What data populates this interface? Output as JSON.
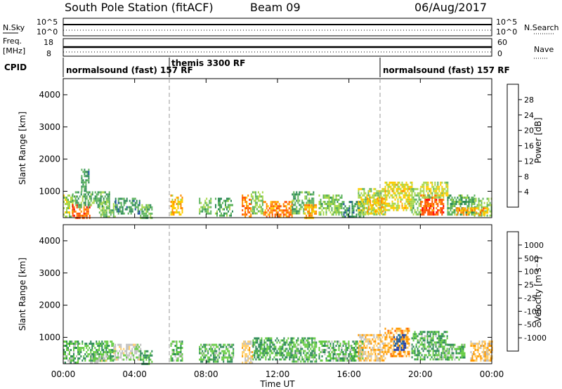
{
  "header": {
    "station": "South Pole Station (fitACF)",
    "beam": "Beam 09",
    "date": "06/Aug/2017"
  },
  "noise_panel": {
    "left_label": "N.Sky",
    "right_label": "N.Search",
    "left_ticks": [
      "10^5",
      "10^0"
    ],
    "right_ticks": [
      "10^5",
      "10^0"
    ]
  },
  "freq_panel": {
    "left_label_1": "Freq.",
    "left_label_2": "[MHz]",
    "right_label": "Nave",
    "left_ticks": [
      "18",
      "8"
    ],
    "right_ticks": [
      "60",
      "0"
    ]
  },
  "cpid_panel": {
    "label": "CPID",
    "modes": [
      {
        "text": "normalsound (fast) 157 RF",
        "start_hour": 0
      },
      {
        "text": "themis 3300 RF",
        "start_hour": 6
      },
      {
        "text": "normalsound (fast) 157 RF",
        "start_hour": 18
      }
    ]
  },
  "xaxis": {
    "label": "Time UT",
    "ticks": [
      "00:00",
      "04:00",
      "08:00",
      "12:00",
      "16:00",
      "20:00",
      "00:00"
    ]
  },
  "colors": {
    "power_scale": [
      "#0000ff",
      "#1f4fa0",
      "#2e8b57",
      "#5fb55f",
      "#a8d84c",
      "#ffcc00",
      "#ff8c00",
      "#ff5000",
      "#ff0000"
    ],
    "velocity_scale": [
      "#ff0000",
      "#ff5500",
      "#ff9900",
      "#ffcc66",
      "#c0c0c0",
      "#66cc44",
      "#2e8b57",
      "#2060a0",
      "#1f3fb0"
    ]
  },
  "chart_data": [
    {
      "type": "heatmap",
      "name": "power",
      "ylabel": "Slant Range [km]",
      "yticks": [
        1000,
        2000,
        3000,
        4000
      ],
      "ylim": [
        180,
        4500
      ],
      "xlim_hours": [
        0,
        24
      ],
      "colorbar": {
        "label": "Power [dB]",
        "ticks": [
          "28",
          "24",
          "20",
          "16",
          "12",
          "8",
          "4"
        ],
        "range": [
          0,
          32
        ]
      },
      "blocks": [
        {
          "t0": 0.0,
          "t1": 0.5,
          "r0": 200,
          "r1": 900,
          "v": 16
        },
        {
          "t0": 0.5,
          "t1": 1.6,
          "r0": 200,
          "r1": 600,
          "v": 26
        },
        {
          "t0": 0.5,
          "t1": 2.6,
          "r0": 500,
          "r1": 1000,
          "v": 12
        },
        {
          "t0": 1.0,
          "t1": 1.4,
          "r0": 1000,
          "r1": 1700,
          "v": 10
        },
        {
          "t0": 2.0,
          "t1": 2.9,
          "r0": 200,
          "r1": 700,
          "v": 14
        },
        {
          "t0": 2.9,
          "t1": 4.3,
          "r0": 300,
          "r1": 800,
          "v": 10
        },
        {
          "t0": 4.3,
          "t1": 5.0,
          "r0": 200,
          "r1": 600,
          "v": 12
        },
        {
          "t0": 6.0,
          "t1": 6.7,
          "r0": 300,
          "r1": 900,
          "v": 20
        },
        {
          "t0": 7.6,
          "t1": 8.3,
          "r0": 300,
          "r1": 800,
          "v": 14
        },
        {
          "t0": 8.5,
          "t1": 9.5,
          "r0": 250,
          "r1": 800,
          "v": 12
        },
        {
          "t0": 10.0,
          "t1": 10.5,
          "r0": 200,
          "r1": 900,
          "v": 24
        },
        {
          "t0": 10.5,
          "t1": 11.2,
          "r0": 300,
          "r1": 1000,
          "v": 14
        },
        {
          "t0": 11.2,
          "t1": 12.8,
          "r0": 200,
          "r1": 700,
          "v": 24
        },
        {
          "t0": 12.8,
          "t1": 14.0,
          "r0": 300,
          "r1": 1000,
          "v": 12
        },
        {
          "t0": 13.5,
          "t1": 14.2,
          "r0": 200,
          "r1": 600,
          "v": 22
        },
        {
          "t0": 14.3,
          "t1": 15.6,
          "r0": 250,
          "r1": 900,
          "v": 14
        },
        {
          "t0": 15.6,
          "t1": 16.8,
          "r0": 200,
          "r1": 700,
          "v": 10
        },
        {
          "t0": 16.5,
          "t1": 18.0,
          "r0": 300,
          "r1": 1100,
          "v": 16
        },
        {
          "t0": 17.0,
          "t1": 18.0,
          "r0": 300,
          "r1": 800,
          "v": 20
        },
        {
          "t0": 18.0,
          "t1": 19.5,
          "r0": 400,
          "r1": 1300,
          "v": 18
        },
        {
          "t0": 19.5,
          "t1": 20.0,
          "r0": 300,
          "r1": 1100,
          "v": 14
        },
        {
          "t0": 20.0,
          "t1": 21.3,
          "r0": 300,
          "r1": 900,
          "v": 26
        },
        {
          "t0": 20.0,
          "t1": 21.5,
          "r0": 800,
          "r1": 1300,
          "v": 17
        },
        {
          "t0": 21.5,
          "t1": 23.0,
          "r0": 300,
          "r1": 900,
          "v": 12
        },
        {
          "t0": 23.0,
          "t1": 24.0,
          "r0": 250,
          "r1": 800,
          "v": 14
        },
        {
          "t0": 22.0,
          "t1": 23.8,
          "r0": 250,
          "r1": 500,
          "v": 22
        }
      ]
    },
    {
      "type": "heatmap",
      "name": "velocity",
      "ylabel": "Slant Range [km]",
      "yticks": [
        1000,
        2000,
        3000,
        4000
      ],
      "ylim": [
        180,
        4500
      ],
      "xlim_hours": [
        0,
        24
      ],
      "colorbar": {
        "label": "Velocity [m s⁻¹]",
        "ticks": [
          "1000",
          "500",
          "100",
          "25",
          "-25",
          "-100",
          "-500",
          "-1000"
        ],
        "range": [
          -1200,
          1200
        ]
      },
      "blocks": [
        {
          "t0": 0.0,
          "t1": 0.8,
          "r0": 200,
          "r1": 900,
          "v": 300
        },
        {
          "t0": 0.8,
          "t1": 2.8,
          "r0": 300,
          "r1": 900,
          "v": 400
        },
        {
          "t0": 1.5,
          "t1": 2.5,
          "r0": 200,
          "r1": 500,
          "v": 80
        },
        {
          "t0": 2.8,
          "t1": 4.3,
          "r0": 300,
          "r1": 800,
          "v": 60
        },
        {
          "t0": 4.3,
          "t1": 5.0,
          "r0": 200,
          "r1": 600,
          "v": 400
        },
        {
          "t0": 6.0,
          "t1": 6.7,
          "r0": 300,
          "r1": 900,
          "v": 300
        },
        {
          "t0": 7.6,
          "t1": 9.5,
          "r0": 250,
          "r1": 800,
          "v": 350
        },
        {
          "t0": 10.0,
          "t1": 10.6,
          "r0": 200,
          "r1": 900,
          "v": -200
        },
        {
          "t0": 10.6,
          "t1": 12.8,
          "r0": 300,
          "r1": 1000,
          "v": 400
        },
        {
          "t0": 12.8,
          "t1": 14.2,
          "r0": 250,
          "r1": 1000,
          "v": 350
        },
        {
          "t0": 14.3,
          "t1": 16.8,
          "r0": 250,
          "r1": 900,
          "v": 300
        },
        {
          "t0": 16.5,
          "t1": 18.0,
          "r0": 300,
          "r1": 1100,
          "v": -300
        },
        {
          "t0": 18.0,
          "t1": 19.4,
          "r0": 400,
          "r1": 1300,
          "v": -450
        },
        {
          "t0": 18.5,
          "t1": 19.2,
          "r0": 600,
          "r1": 1100,
          "v": 900
        },
        {
          "t0": 19.5,
          "t1": 21.5,
          "r0": 300,
          "r1": 1200,
          "v": 350
        },
        {
          "t0": 21.5,
          "t1": 22.5,
          "r0": 300,
          "r1": 800,
          "v": 300
        },
        {
          "t0": 22.8,
          "t1": 24.0,
          "r0": 300,
          "r1": 900,
          "v": -300
        }
      ]
    }
  ]
}
